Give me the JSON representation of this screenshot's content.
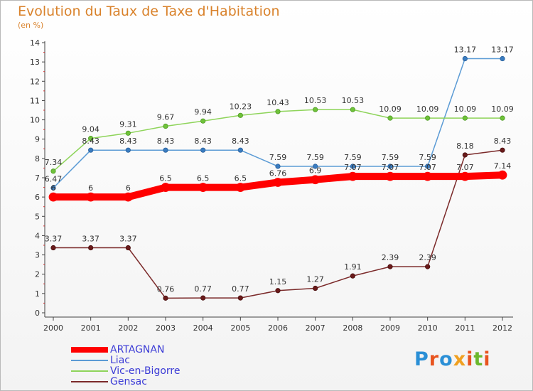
{
  "title": "Evolution du Taux de Taxe d'Habitation",
  "unit_label": "(en %)",
  "logo": {
    "text": "Proxiti",
    "colors": [
      "#2a8fd6",
      "#e8541f",
      "#2a8fd6",
      "#f0a020",
      "#e8541f",
      "#6bb82c",
      "#e8541f"
    ]
  },
  "chart_data": {
    "type": "line",
    "title": "Evolution du Taux de Taxe d'Habitation",
    "ylabel": "(en %)",
    "xlabel": "",
    "x": [
      "2000",
      "2001",
      "2002",
      "2003",
      "2004",
      "2005",
      "2006",
      "2007",
      "2008",
      "2009",
      "2010",
      "2011",
      "2012"
    ],
    "ylim": [
      0,
      14
    ],
    "yticks": [
      "0",
      "1",
      "2",
      "3",
      "4",
      "5",
      "6",
      "7",
      "8",
      "9",
      "10",
      "11",
      "12",
      "13",
      "14"
    ],
    "grid": false,
    "legend_position": "bottom-left",
    "series": [
      {
        "name": "ARTAGNAN",
        "color": "#ff0000",
        "values": [
          6,
          6,
          6,
          6.5,
          6.5,
          6.5,
          6.76,
          6.9,
          7.07,
          7.07,
          7.07,
          7.07,
          7.14
        ],
        "labels": [
          "6",
          "6",
          "6",
          "6.5",
          "6.5",
          "6.5",
          "6.76",
          "6.9",
          "7.07",
          "7.07",
          "7.07",
          "7.07",
          "7.14"
        ]
      },
      {
        "name": "Liac",
        "color": "#5b9bd5",
        "values": [
          6.47,
          8.43,
          8.43,
          8.43,
          8.43,
          8.43,
          7.59,
          7.59,
          7.59,
          7.59,
          7.59,
          13.17,
          13.17
        ],
        "labels": [
          "6.47",
          "8.43",
          "8.43",
          "8.43",
          "8.43",
          "8.43",
          "7.59",
          "7.59",
          "7.59",
          "7.59",
          "7.59",
          "13.17",
          "13.17"
        ]
      },
      {
        "name": "Vic-en-Bigorre",
        "color": "#8ed45a",
        "values": [
          7.34,
          9.04,
          9.31,
          9.67,
          9.94,
          10.23,
          10.43,
          10.53,
          10.53,
          10.09,
          10.09,
          10.09,
          10.09
        ],
        "labels": [
          "7.34",
          "9.04",
          "9.31",
          "9.67",
          "9.94",
          "10.23",
          "10.43",
          "10.53",
          "10.53",
          "10.09",
          "10.09",
          "10.09",
          "10.09"
        ]
      },
      {
        "name": "Gensac",
        "color": "#7b2a2a",
        "values": [
          3.37,
          3.37,
          3.37,
          0.76,
          0.77,
          0.77,
          1.15,
          1.27,
          1.91,
          2.39,
          2.39,
          8.18,
          8.43
        ],
        "labels": [
          "3.37",
          "3.37",
          "3.37",
          "0.76",
          "0.77",
          "0.77",
          "1.15",
          "1.27",
          "1.91",
          "2.39",
          "2.39",
          "8.18",
          "8.43"
        ]
      }
    ]
  }
}
